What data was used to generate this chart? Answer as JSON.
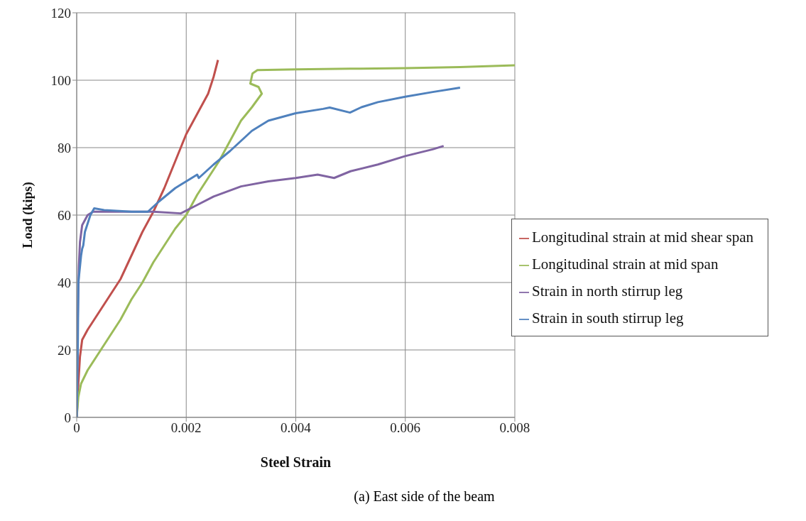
{
  "chart_data": {
    "type": "line",
    "xlabel": "Steel Strain",
    "ylabel": "Load (kips)",
    "annotations": [
      "(a) East side of the beam"
    ],
    "xlim": [
      0,
      0.008
    ],
    "xticks": [
      0,
      0.002,
      0.004,
      0.006,
      0.008
    ],
    "ylim": [
      0,
      120
    ],
    "yticks": [
      0,
      20,
      40,
      60,
      80,
      100,
      120
    ],
    "grid": true,
    "legend": "right",
    "marker": "none",
    "line_style": "solid",
    "series": [
      {
        "name": "Longitudinal strain at mid shear span",
        "color": "#c0504d",
        "x": [
          0,
          3e-05,
          6e-05,
          0.0001,
          0.0002,
          0.0004,
          0.0006,
          0.0008,
          0.001,
          0.0012,
          0.0014,
          0.0016,
          0.0018,
          0.002,
          0.0022,
          0.0024,
          0.0025,
          0.00258
        ],
        "values": [
          0,
          10,
          18,
          23,
          26,
          31,
          36,
          41,
          48,
          55,
          61,
          68,
          76,
          84,
          90,
          96,
          101,
          106
        ]
      },
      {
        "name": "Longitudinal strain at mid span",
        "color": "#9bbb59",
        "x": [
          0,
          3e-05,
          8e-05,
          0.0002,
          0.0004,
          0.0006,
          0.0008,
          0.001,
          0.0012,
          0.0014,
          0.0016,
          0.0018,
          0.002,
          0.0022,
          0.0024,
          0.0026,
          0.0028,
          0.003,
          0.0032,
          0.00338,
          0.00332,
          0.00317,
          0.00321,
          0.0033,
          0.004,
          0.005,
          0.006,
          0.007,
          0.008
        ],
        "values": [
          0,
          6,
          10,
          14,
          19,
          24,
          29,
          35,
          40,
          46,
          51,
          56,
          60,
          66,
          71,
          76,
          82,
          88,
          92,
          96,
          98,
          99,
          102,
          103,
          103.2,
          103.4,
          103.6,
          103.9,
          104.4
        ]
      },
      {
        "name": "Strain in north stirrup leg",
        "color": "#8064a2",
        "x": [
          0,
          2e-05,
          4e-05,
          6e-05,
          0.0001,
          0.0002,
          0.0003,
          0.0006,
          0.001,
          0.0014,
          0.0019,
          0.0022,
          0.0025,
          0.003,
          0.0035,
          0.004,
          0.0044,
          0.0047,
          0.005,
          0.0055,
          0.006,
          0.0065,
          0.0067
        ],
        "values": [
          0,
          30,
          45,
          52,
          57,
          60,
          61,
          61,
          61,
          61,
          60.5,
          63,
          65.5,
          68.5,
          70,
          71,
          72,
          71,
          73,
          75,
          77.5,
          79.5,
          80.5
        ]
      },
      {
        "name": "Strain in south stirrup leg",
        "color": "#4f81bd",
        "x": [
          0,
          2e-05,
          3e-05,
          8e-05,
          0.0001,
          0.00012,
          0.00015,
          0.00025,
          0.00032,
          0.0005,
          0.001,
          0.0013,
          0.0015,
          0.0018,
          0.002,
          0.0022,
          0.00223,
          0.0025,
          0.0028,
          0.003,
          0.0032,
          0.0035,
          0.004,
          0.0045,
          0.00462,
          0.00499,
          0.0052,
          0.0055,
          0.006,
          0.0065,
          0.007
        ],
        "values": [
          0,
          20,
          40,
          48,
          50,
          51,
          55,
          60,
          62,
          61.5,
          61,
          61,
          64,
          68,
          70,
          72,
          71,
          75,
          79,
          82,
          85,
          88,
          90.2,
          91.5,
          91.9,
          90.4,
          92,
          93.5,
          95.1,
          96.5,
          97.8
        ]
      }
    ]
  }
}
